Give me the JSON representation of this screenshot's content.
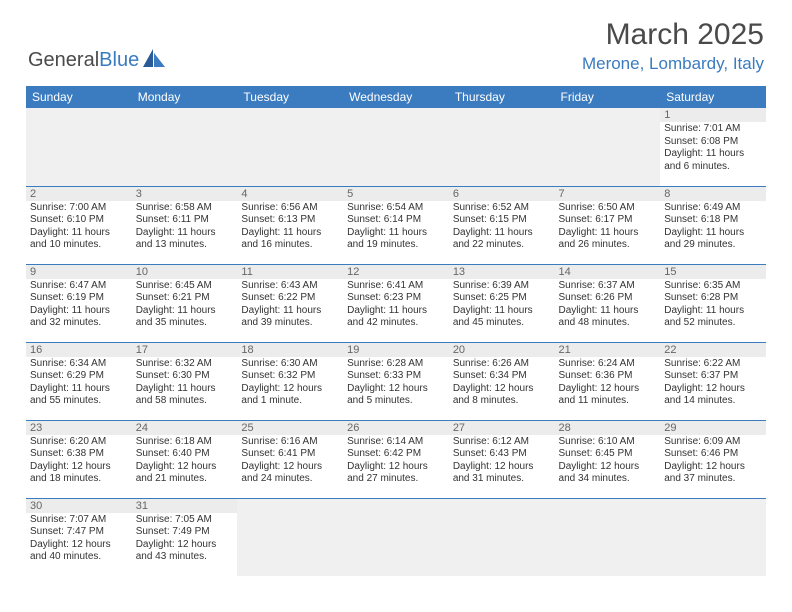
{
  "brand": {
    "part1": "General",
    "part2": "Blue"
  },
  "title": "March 2025",
  "location": "Merone, Lombardy, Italy",
  "weekdays": [
    "Sunday",
    "Monday",
    "Tuesday",
    "Wednesday",
    "Thursday",
    "Friday",
    "Saturday"
  ],
  "colors": {
    "accent": "#3b7bbf",
    "text": "#4a4a4a"
  },
  "weeks": [
    [
      null,
      null,
      null,
      null,
      null,
      null,
      {
        "n": "1",
        "sr": "Sunrise: 7:01 AM",
        "ss": "Sunset: 6:08 PM",
        "dl": "Daylight: 11 hours and 6 minutes."
      }
    ],
    [
      {
        "n": "2",
        "sr": "Sunrise: 7:00 AM",
        "ss": "Sunset: 6:10 PM",
        "dl": "Daylight: 11 hours and 10 minutes."
      },
      {
        "n": "3",
        "sr": "Sunrise: 6:58 AM",
        "ss": "Sunset: 6:11 PM",
        "dl": "Daylight: 11 hours and 13 minutes."
      },
      {
        "n": "4",
        "sr": "Sunrise: 6:56 AM",
        "ss": "Sunset: 6:13 PM",
        "dl": "Daylight: 11 hours and 16 minutes."
      },
      {
        "n": "5",
        "sr": "Sunrise: 6:54 AM",
        "ss": "Sunset: 6:14 PM",
        "dl": "Daylight: 11 hours and 19 minutes."
      },
      {
        "n": "6",
        "sr": "Sunrise: 6:52 AM",
        "ss": "Sunset: 6:15 PM",
        "dl": "Daylight: 11 hours and 22 minutes."
      },
      {
        "n": "7",
        "sr": "Sunrise: 6:50 AM",
        "ss": "Sunset: 6:17 PM",
        "dl": "Daylight: 11 hours and 26 minutes."
      },
      {
        "n": "8",
        "sr": "Sunrise: 6:49 AM",
        "ss": "Sunset: 6:18 PM",
        "dl": "Daylight: 11 hours and 29 minutes."
      }
    ],
    [
      {
        "n": "9",
        "sr": "Sunrise: 6:47 AM",
        "ss": "Sunset: 6:19 PM",
        "dl": "Daylight: 11 hours and 32 minutes."
      },
      {
        "n": "10",
        "sr": "Sunrise: 6:45 AM",
        "ss": "Sunset: 6:21 PM",
        "dl": "Daylight: 11 hours and 35 minutes."
      },
      {
        "n": "11",
        "sr": "Sunrise: 6:43 AM",
        "ss": "Sunset: 6:22 PM",
        "dl": "Daylight: 11 hours and 39 minutes."
      },
      {
        "n": "12",
        "sr": "Sunrise: 6:41 AM",
        "ss": "Sunset: 6:23 PM",
        "dl": "Daylight: 11 hours and 42 minutes."
      },
      {
        "n": "13",
        "sr": "Sunrise: 6:39 AM",
        "ss": "Sunset: 6:25 PM",
        "dl": "Daylight: 11 hours and 45 minutes."
      },
      {
        "n": "14",
        "sr": "Sunrise: 6:37 AM",
        "ss": "Sunset: 6:26 PM",
        "dl": "Daylight: 11 hours and 48 minutes."
      },
      {
        "n": "15",
        "sr": "Sunrise: 6:35 AM",
        "ss": "Sunset: 6:28 PM",
        "dl": "Daylight: 11 hours and 52 minutes."
      }
    ],
    [
      {
        "n": "16",
        "sr": "Sunrise: 6:34 AM",
        "ss": "Sunset: 6:29 PM",
        "dl": "Daylight: 11 hours and 55 minutes."
      },
      {
        "n": "17",
        "sr": "Sunrise: 6:32 AM",
        "ss": "Sunset: 6:30 PM",
        "dl": "Daylight: 11 hours and 58 minutes."
      },
      {
        "n": "18",
        "sr": "Sunrise: 6:30 AM",
        "ss": "Sunset: 6:32 PM",
        "dl": "Daylight: 12 hours and 1 minute."
      },
      {
        "n": "19",
        "sr": "Sunrise: 6:28 AM",
        "ss": "Sunset: 6:33 PM",
        "dl": "Daylight: 12 hours and 5 minutes."
      },
      {
        "n": "20",
        "sr": "Sunrise: 6:26 AM",
        "ss": "Sunset: 6:34 PM",
        "dl": "Daylight: 12 hours and 8 minutes."
      },
      {
        "n": "21",
        "sr": "Sunrise: 6:24 AM",
        "ss": "Sunset: 6:36 PM",
        "dl": "Daylight: 12 hours and 11 minutes."
      },
      {
        "n": "22",
        "sr": "Sunrise: 6:22 AM",
        "ss": "Sunset: 6:37 PM",
        "dl": "Daylight: 12 hours and 14 minutes."
      }
    ],
    [
      {
        "n": "23",
        "sr": "Sunrise: 6:20 AM",
        "ss": "Sunset: 6:38 PM",
        "dl": "Daylight: 12 hours and 18 minutes."
      },
      {
        "n": "24",
        "sr": "Sunrise: 6:18 AM",
        "ss": "Sunset: 6:40 PM",
        "dl": "Daylight: 12 hours and 21 minutes."
      },
      {
        "n": "25",
        "sr": "Sunrise: 6:16 AM",
        "ss": "Sunset: 6:41 PM",
        "dl": "Daylight: 12 hours and 24 minutes."
      },
      {
        "n": "26",
        "sr": "Sunrise: 6:14 AM",
        "ss": "Sunset: 6:42 PM",
        "dl": "Daylight: 12 hours and 27 minutes."
      },
      {
        "n": "27",
        "sr": "Sunrise: 6:12 AM",
        "ss": "Sunset: 6:43 PM",
        "dl": "Daylight: 12 hours and 31 minutes."
      },
      {
        "n": "28",
        "sr": "Sunrise: 6:10 AM",
        "ss": "Sunset: 6:45 PM",
        "dl": "Daylight: 12 hours and 34 minutes."
      },
      {
        "n": "29",
        "sr": "Sunrise: 6:09 AM",
        "ss": "Sunset: 6:46 PM",
        "dl": "Daylight: 12 hours and 37 minutes."
      }
    ],
    [
      {
        "n": "30",
        "sr": "Sunrise: 7:07 AM",
        "ss": "Sunset: 7:47 PM",
        "dl": "Daylight: 12 hours and 40 minutes."
      },
      {
        "n": "31",
        "sr": "Sunrise: 7:05 AM",
        "ss": "Sunset: 7:49 PM",
        "dl": "Daylight: 12 hours and 43 minutes."
      },
      null,
      null,
      null,
      null,
      null
    ]
  ]
}
